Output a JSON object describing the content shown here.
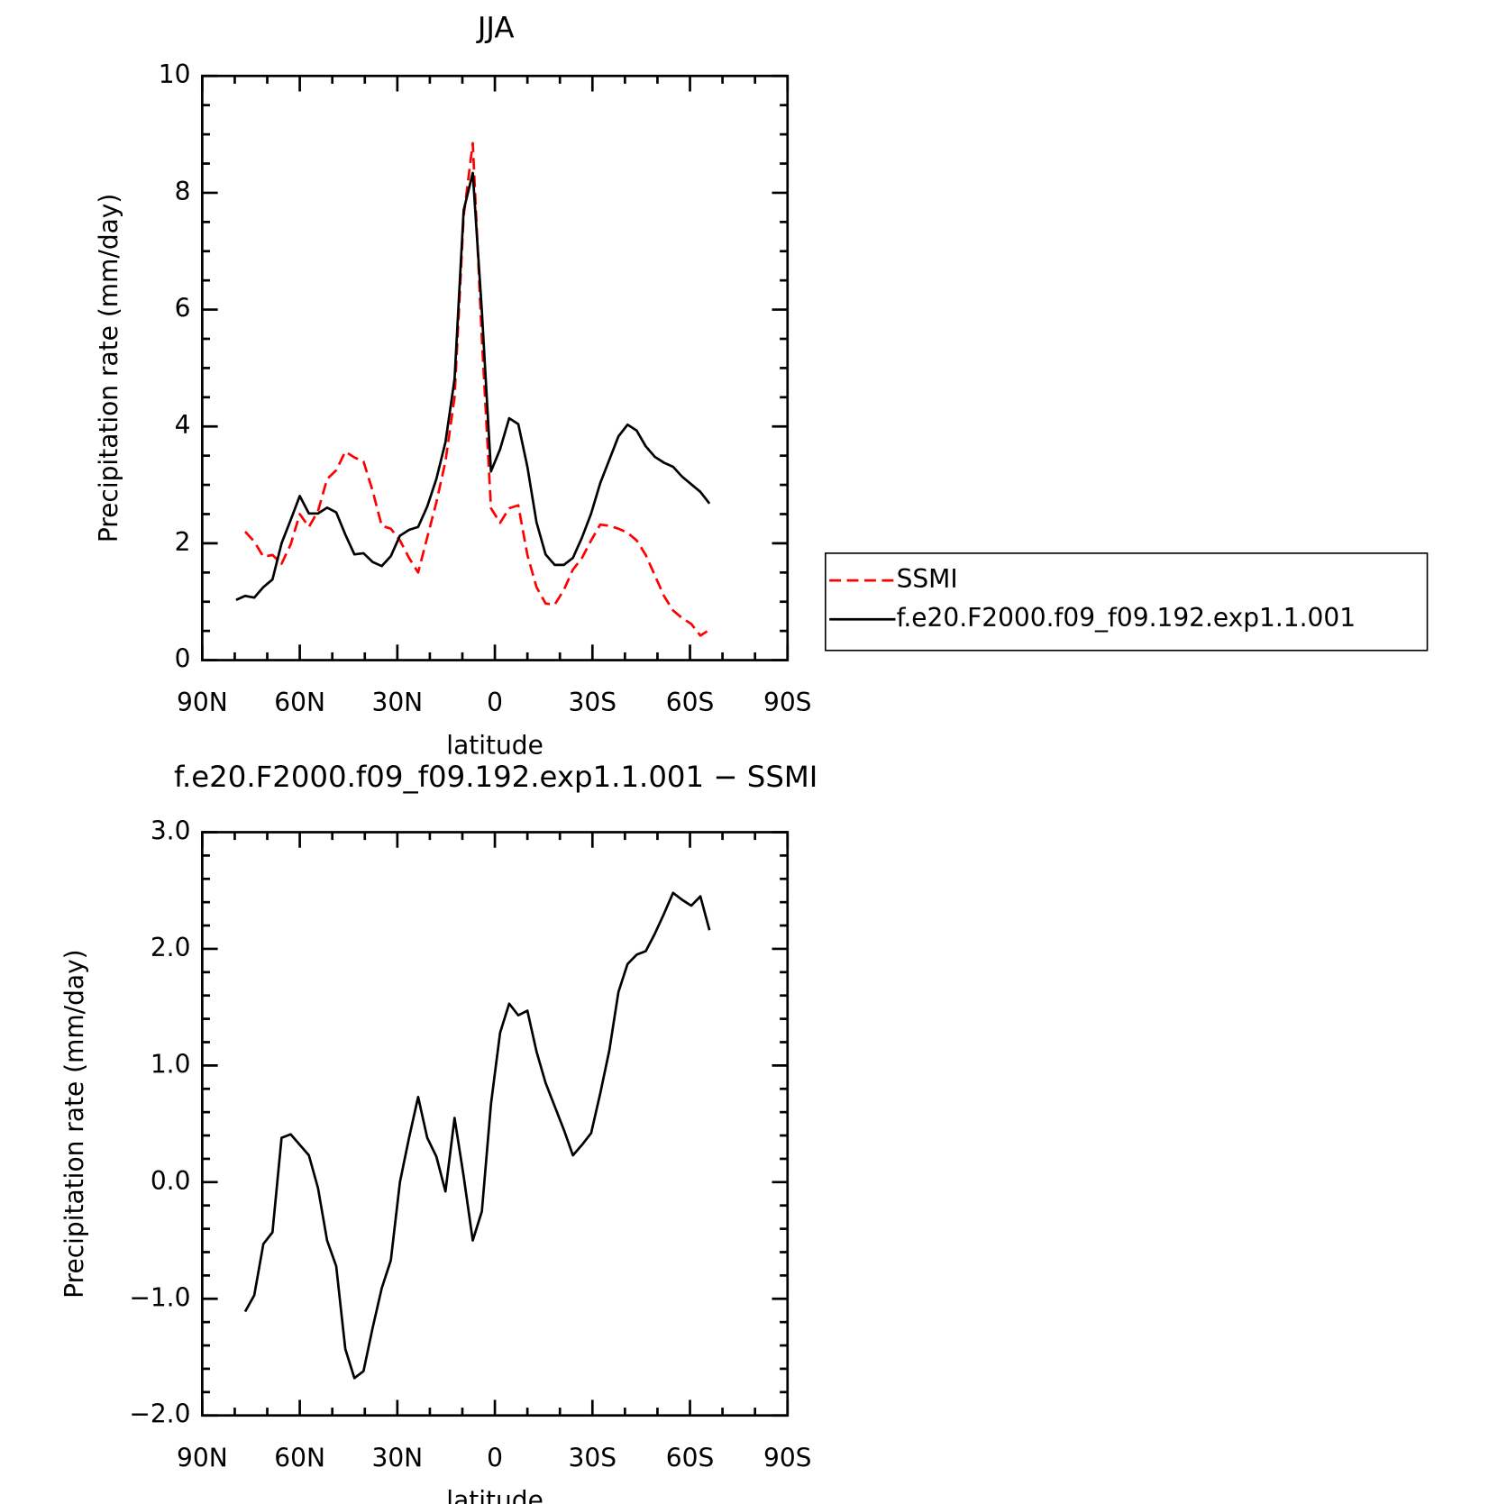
{
  "chart_data": [
    {
      "type": "line",
      "title": "JJA",
      "xlabel": "latitude",
      "ylabel": "Precipitation rate (mm/day)",
      "x": [
        79.6,
        76.8,
        74.0,
        71.2,
        68.4,
        65.6,
        62.8,
        60.0,
        57.2,
        54.4,
        51.6,
        48.8,
        46.0,
        43.2,
        40.4,
        37.6,
        34.8,
        32.0,
        29.2,
        26.4,
        23.6,
        20.8,
        18.0,
        15.2,
        12.4,
        9.6,
        6.8,
        4.0,
        1.2,
        -1.6,
        -4.4,
        -7.2,
        -10.0,
        -12.8,
        -15.6,
        -18.4,
        -21.2,
        -24.0,
        -26.8,
        -29.6,
        -32.4,
        -35.2,
        -38.0,
        -40.8,
        -43.6,
        -46.4,
        -49.2,
        -52.0,
        -54.8,
        -57.6,
        -60.4,
        -63.2,
        -66.0
      ],
      "series": [
        {
          "name": "SSMI",
          "color": "#ff0000",
          "linestyle": "dashed",
          "values": [
            null,
            2.2,
            2.03,
            1.77,
            1.8,
            1.65,
            1.98,
            2.5,
            2.28,
            2.55,
            3.1,
            3.25,
            3.57,
            3.47,
            3.4,
            2.9,
            2.3,
            2.25,
            2.05,
            1.75,
            1.5,
            2.1,
            2.7,
            3.4,
            4.5,
            7.6,
            8.85,
            5.5,
            2.6,
            2.35,
            2.6,
            2.65,
            1.8,
            1.25,
            0.97,
            0.95,
            1.2,
            1.55,
            1.75,
            2.05,
            2.32,
            2.3,
            2.25,
            2.18,
            2.05,
            1.8,
            1.45,
            1.1,
            0.85,
            0.72,
            0.62,
            0.42,
            0.52
          ]
        },
        {
          "name": "f.e20.F2000.f09_f09.192.exp1.1.001",
          "color": "#000000",
          "linestyle": "solid",
          "values": [
            1.03,
            1.1,
            1.07,
            1.25,
            1.38,
            2.0,
            2.4,
            2.81,
            2.51,
            2.51,
            2.61,
            2.53,
            2.15,
            1.81,
            1.83,
            1.68,
            1.61,
            1.78,
            2.13,
            2.23,
            2.28,
            2.63,
            3.1,
            3.73,
            4.81,
            7.7,
            8.34,
            5.97,
            3.23,
            3.61,
            4.14,
            4.04,
            3.31,
            2.36,
            1.81,
            1.63,
            1.63,
            1.75,
            2.1,
            2.51,
            3.03,
            3.43,
            3.83,
            4.03,
            3.93,
            3.66,
            3.48,
            3.38,
            3.31,
            3.14,
            3.01,
            2.88,
            2.68
          ]
        }
      ],
      "xlim": [
        90,
        -90
      ],
      "xticks": [
        {
          "value": 90,
          "label": "90N"
        },
        {
          "value": 60,
          "label": "60N"
        },
        {
          "value": 30,
          "label": "30N"
        },
        0,
        {
          "value": -30,
          "label": "30S"
        },
        {
          "value": -60,
          "label": "60S"
        },
        {
          "value": -90,
          "label": "90S"
        }
      ],
      "xminorticks": [
        80,
        70,
        50,
        40,
        20,
        10,
        -10,
        -20,
        -40,
        -50,
        -70,
        -80
      ],
      "ylim": [
        0,
        10
      ],
      "yticks": [
        0,
        2,
        4,
        6,
        8,
        10
      ],
      "yminorticks": [
        0.5,
        1,
        1.5,
        2.5,
        3,
        3.5,
        4.5,
        5,
        5.5,
        6.5,
        7,
        7.5,
        8.5,
        9,
        9.5
      ],
      "legend": "right"
    },
    {
      "type": "line",
      "title": "f.e20.F2000.f09_f09.192.exp1.1.001 − SSMI",
      "xlabel": "latitude",
      "ylabel": "Precipitation rate (mm/day)",
      "x": [
        79.6,
        76.8,
        74.0,
        71.2,
        68.4,
        65.6,
        62.8,
        60.0,
        57.2,
        54.4,
        51.6,
        48.8,
        46.0,
        43.2,
        40.4,
        37.6,
        34.8,
        32.0,
        29.2,
        26.4,
        23.6,
        20.8,
        18.0,
        15.2,
        12.4,
        9.6,
        6.8,
        4.0,
        1.2,
        -1.6,
        -4.4,
        -7.2,
        -10.0,
        -12.8,
        -15.6,
        -18.4,
        -21.2,
        -24.0,
        -26.8,
        -29.6,
        -32.4,
        -35.2,
        -38.0,
        -40.8,
        -43.6,
        -46.4,
        -49.2,
        -52.0,
        -54.8,
        -57.6,
        -60.4,
        -63.2,
        -66.0
      ],
      "values": [
        null,
        -1.11,
        -0.97,
        -0.53,
        -0.43,
        0.38,
        0.41,
        0.32,
        0.23,
        -0.05,
        -0.5,
        -0.72,
        -1.43,
        -1.68,
        -1.62,
        -1.25,
        -0.91,
        -0.67,
        0.0,
        0.38,
        0.73,
        0.38,
        0.22,
        -0.08,
        0.55,
        0.05,
        -0.5,
        -0.25,
        0.67,
        1.28,
        1.53,
        1.43,
        1.47,
        1.12,
        0.85,
        0.65,
        0.45,
        0.23,
        0.32,
        0.42,
        0.76,
        1.13,
        1.63,
        1.87,
        1.95,
        1.98,
        2.13,
        2.3,
        2.48,
        2.42,
        2.37,
        2.45,
        2.16
      ],
      "color": "#000000",
      "xlim": [
        90,
        -90
      ],
      "xticks": [
        {
          "value": 90,
          "label": "90N"
        },
        {
          "value": 60,
          "label": "60N"
        },
        {
          "value": 30,
          "label": "30N"
        },
        0,
        {
          "value": -30,
          "label": "30S"
        },
        {
          "value": -60,
          "label": "60S"
        },
        {
          "value": -90,
          "label": "90S"
        }
      ],
      "xminorticks": [
        80,
        70,
        50,
        40,
        20,
        10,
        -10,
        -20,
        -40,
        -50,
        -70,
        -80
      ],
      "ylim": [
        -2,
        3
      ],
      "yticks": [
        {
          "value": -2,
          "label": "−2.0"
        },
        {
          "value": -1,
          "label": "−1.0"
        },
        {
          "value": 0,
          "label": "0.0"
        },
        {
          "value": 1,
          "label": "1.0"
        },
        {
          "value": 2,
          "label": "2.0"
        },
        {
          "value": 3,
          "label": "3.0"
        }
      ],
      "yminorticks": [
        -1.8,
        -1.6,
        -1.4,
        -1.2,
        -0.8,
        -0.6,
        -0.4,
        -0.2,
        0.2,
        0.4,
        0.6,
        0.8,
        1.2,
        1.4,
        1.6,
        1.8,
        2.2,
        2.4,
        2.6,
        2.8
      ]
    }
  ]
}
